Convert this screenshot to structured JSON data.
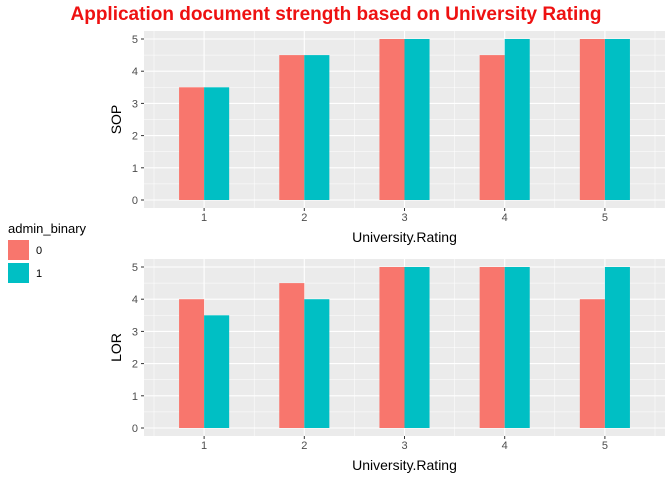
{
  "chart_data": {
    "title": "Application document strength based on University Rating",
    "title_color": "#ee1111",
    "panel_background": "#ebebeb",
    "grid_color": "#ffffff",
    "legend": {
      "title": "admin_binary",
      "placement": "left",
      "entries": [
        {
          "label": "0",
          "color": "#f8766d"
        },
        {
          "label": "1",
          "color": "#00bfc4"
        }
      ]
    },
    "panels": [
      {
        "type": "bar",
        "xlabel": "University.Rating",
        "ylabel": "SOP",
        "categories": [
          "1",
          "2",
          "3",
          "4",
          "5"
        ],
        "ylim": [
          0,
          5
        ],
        "yticks": [
          "0",
          "1",
          "2",
          "3",
          "4",
          "5"
        ],
        "series": [
          {
            "name": "0",
            "values": [
              3.5,
              4.5,
              5,
              4.5,
              5
            ]
          },
          {
            "name": "1",
            "values": [
              3.5,
              4.5,
              5,
              5,
              5
            ]
          }
        ]
      },
      {
        "type": "bar",
        "xlabel": "University.Rating",
        "ylabel": "LOR",
        "categories": [
          "1",
          "2",
          "3",
          "4",
          "5"
        ],
        "ylim": [
          0,
          5
        ],
        "yticks": [
          "0",
          "1",
          "2",
          "3",
          "4",
          "5"
        ],
        "series": [
          {
            "name": "0",
            "values": [
              4,
              4.5,
              5,
              5,
              4
            ]
          },
          {
            "name": "1",
            "values": [
              3.5,
              4,
              5,
              5,
              5
            ]
          }
        ]
      }
    ]
  }
}
